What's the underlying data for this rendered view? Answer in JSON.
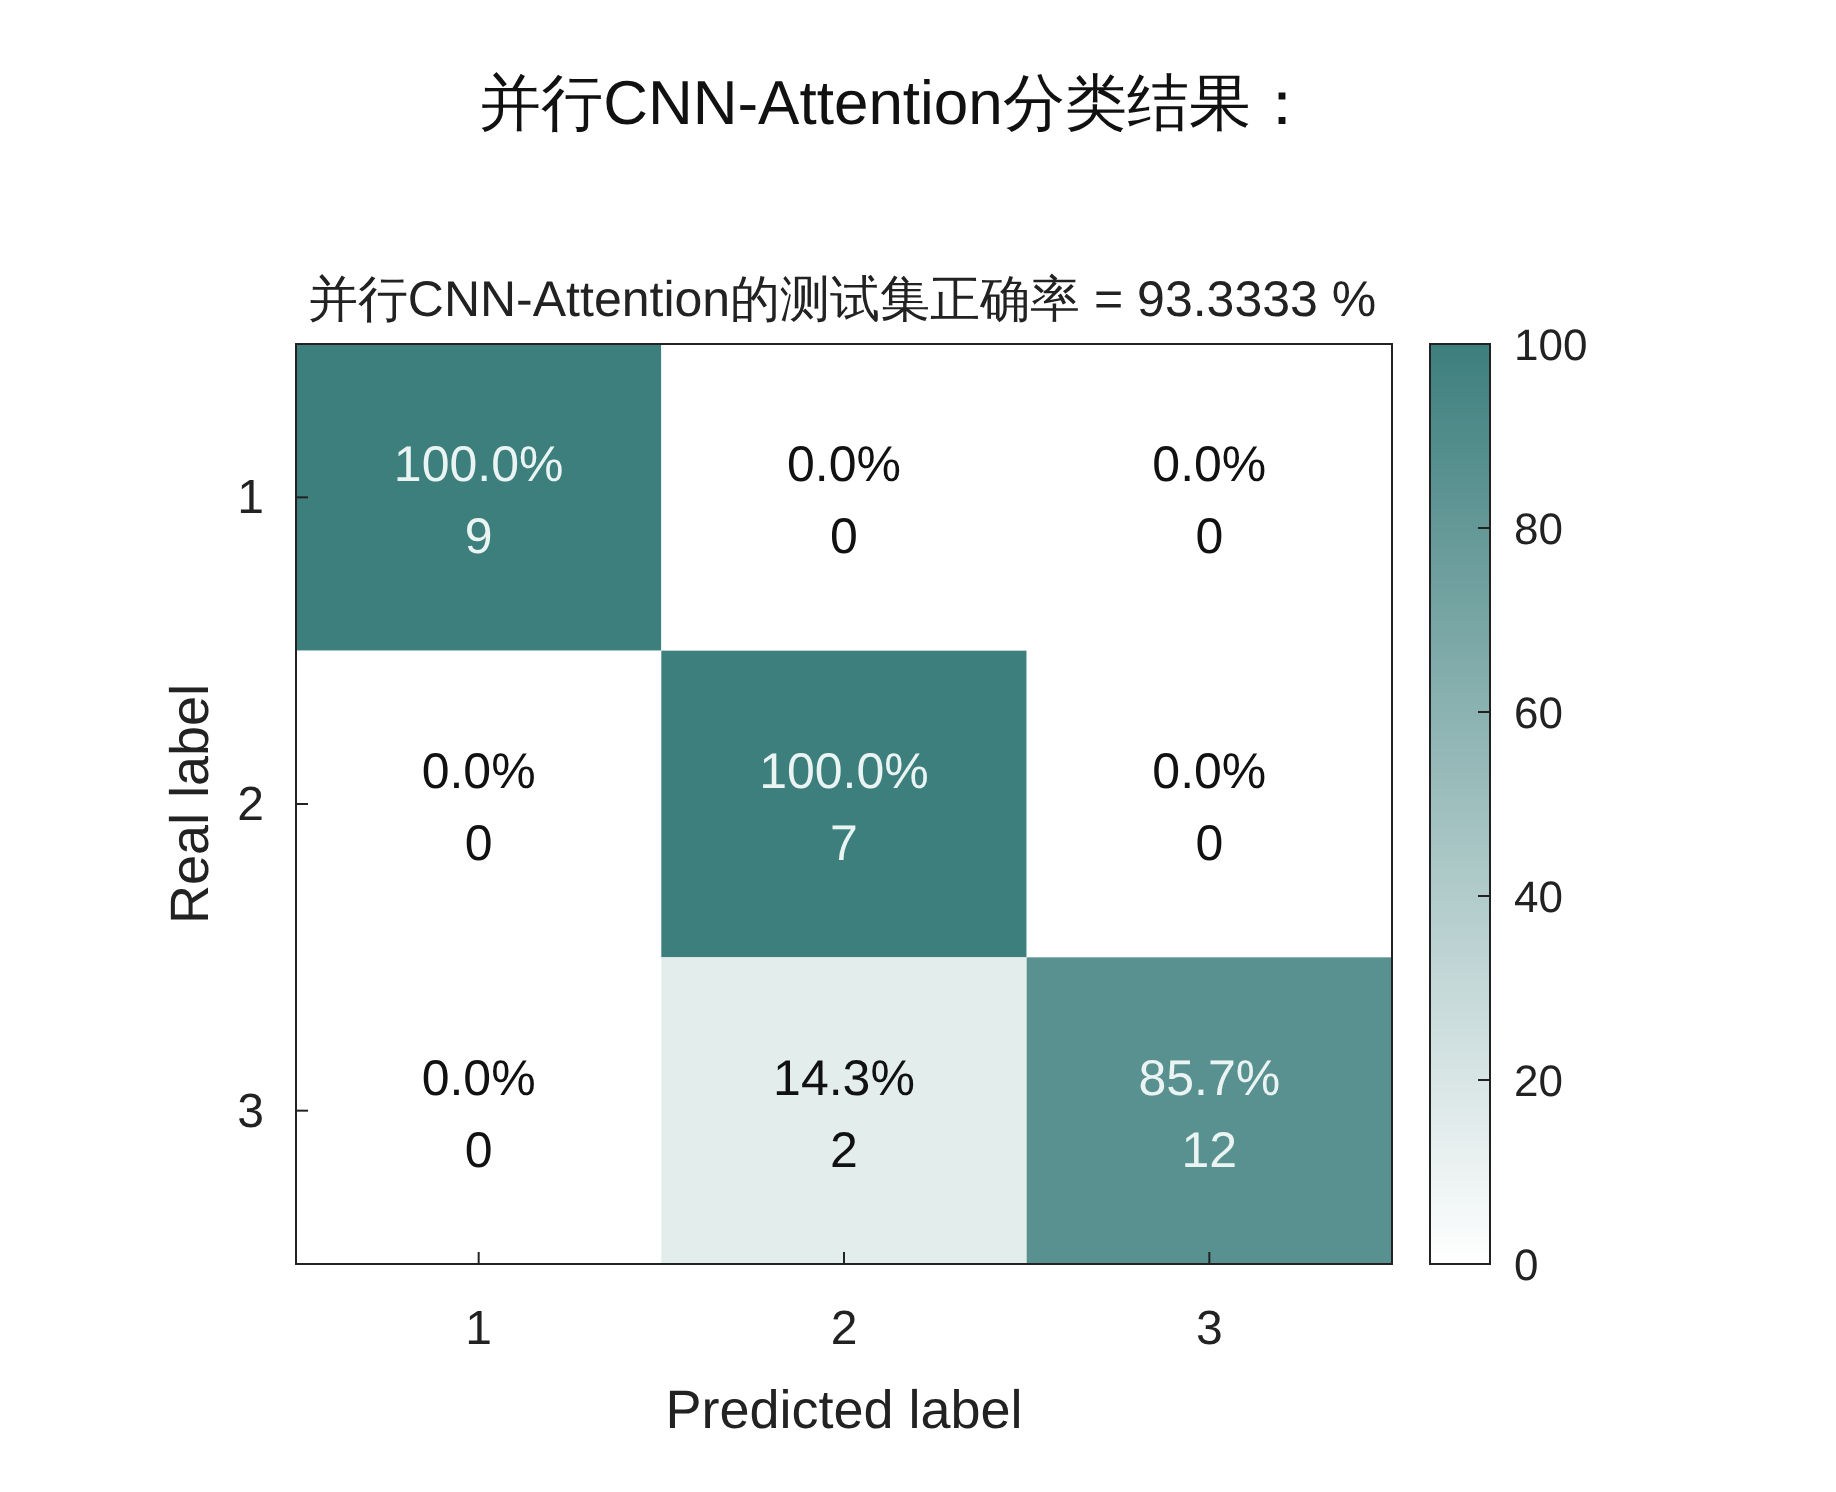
{
  "chart_data": {
    "type": "heatmap",
    "title": "并行CNN-Attention分类结果：",
    "subtitle": "并行CNN-Attention的测试集正确率 = 93.3333 %",
    "xlabel": "Predicted label",
    "ylabel": "Real label",
    "categories": [
      "1",
      "2",
      "3"
    ],
    "y_categories": [
      "1",
      "2",
      "3"
    ],
    "cells": [
      [
        100.0,
        0.0,
        0.0
      ],
      [
        0.0,
        100.0,
        0.0
      ],
      [
        0.0,
        14.3,
        85.7
      ]
    ],
    "cell_labels": [
      [
        "100.0%\n9",
        "0.0%\n0",
        "0.0%\n0"
      ],
      [
        "0.0%\n0",
        "100.0%\n7",
        "0.0%\n0"
      ],
      [
        "0.0%\n0",
        "14.3%\n2",
        "85.7%\n12"
      ]
    ],
    "clim": [
      0,
      100
    ],
    "cticks": [
      0,
      20,
      40,
      60,
      80,
      100
    ]
  }
}
